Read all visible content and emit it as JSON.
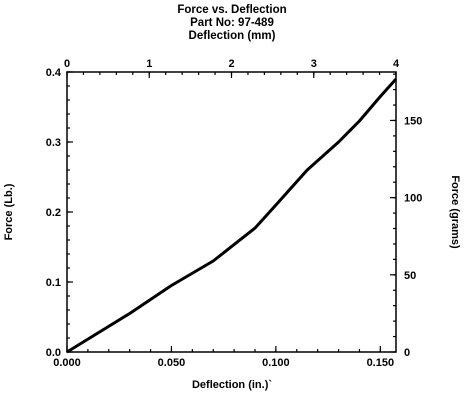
{
  "chart_data": {
    "type": "line",
    "title_lines": [
      "Force vs. Deflection",
      "Part No: 97-489",
      "Deflection (mm)"
    ],
    "xlabel": "Deflection (in.)`",
    "ylabel": "Force (Lb.)",
    "ylabel_right": "Force (grams)",
    "xlim": [
      0,
      0.1575
    ],
    "ylim": [
      0,
      0.4
    ],
    "x_ticks": [
      0.0,
      0.05,
      0.1,
      0.15
    ],
    "x_tick_labels": [
      "0.000",
      "0.050",
      "0.100",
      "0.150"
    ],
    "y_ticks": [
      0.0,
      0.1,
      0.2,
      0.3,
      0.4
    ],
    "y_tick_labels": [
      "0.0",
      "0.1",
      "0.2",
      "0.3",
      "0.4"
    ],
    "top_axis": {
      "label": "Deflection (mm)",
      "range": [
        0,
        4
      ],
      "ticks": [
        0,
        1,
        2,
        3,
        4
      ],
      "tick_labels": [
        "0",
        "1",
        "2",
        "3",
        "4"
      ]
    },
    "right_axis": {
      "label": "Force (grams)",
      "range": [
        0,
        181.4
      ],
      "ticks": [
        0,
        50,
        100,
        150
      ],
      "tick_labels": [
        "0",
        "50",
        "100",
        "150"
      ]
    },
    "grid": false,
    "series": [
      {
        "color": "#000000",
        "x": [
          0.0,
          0.03,
          0.05,
          0.07,
          0.09,
          0.1,
          0.115,
          0.13,
          0.14,
          0.15,
          0.1575
        ],
        "y": [
          0.0,
          0.055,
          0.095,
          0.13,
          0.177,
          0.21,
          0.26,
          0.3,
          0.33,
          0.365,
          0.39
        ]
      }
    ]
  }
}
